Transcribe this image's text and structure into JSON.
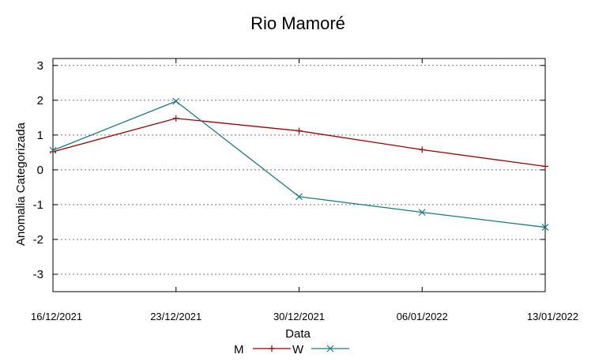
{
  "chart_data": {
    "type": "line",
    "title": "Rio Mamoré",
    "xlabel": "Data",
    "ylabel": "Anomalia Categorizada",
    "categories": [
      "16/12/2021",
      "23/12/2021",
      "30/12/2021",
      "06/01/2022",
      "13/01/2022"
    ],
    "ylim": [
      -3.5,
      3.2
    ],
    "yticks": [
      "3",
      "2",
      "1",
      "0",
      "-1",
      "-2",
      "-3"
    ],
    "grid": true,
    "legend_position": "bottom-center",
    "series": [
      {
        "name": "M",
        "color": "#990000",
        "marker": "+",
        "values": [
          0.52,
          1.48,
          1.12,
          0.58,
          0.1
        ]
      },
      {
        "name": "W",
        "color": "#1a7a80",
        "marker": "x",
        "values": [
          0.56,
          1.97,
          -0.77,
          -1.22,
          -1.65
        ]
      }
    ]
  }
}
